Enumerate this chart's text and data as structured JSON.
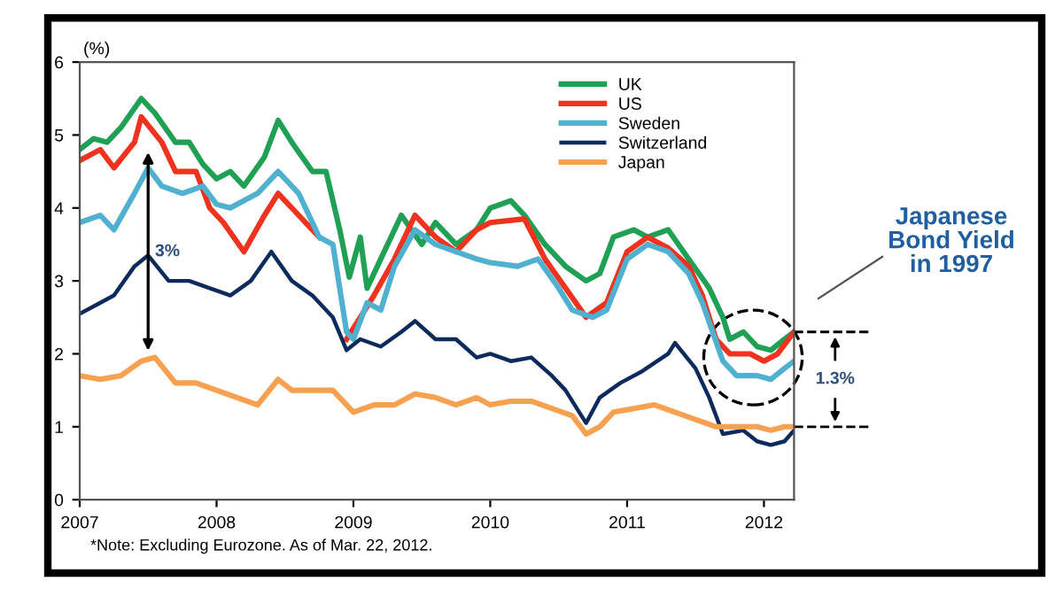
{
  "chart_data": {
    "type": "line",
    "ylabel": "(%)",
    "xlim": [
      2007,
      2012.22
    ],
    "xticks": [
      2007,
      2008,
      2009,
      2010,
      2011,
      2012
    ],
    "ylim": [
      0,
      6
    ],
    "yticks": [
      0,
      1,
      2,
      3,
      4,
      5,
      6
    ],
    "grid": false,
    "legend": "top right",
    "line_style": "solid",
    "marker": "none",
    "series": [
      {
        "name": "UK",
        "color": "#1fa055",
        "x": [
          2007.0,
          2007.1,
          2007.2,
          2007.3,
          2007.45,
          2007.55,
          2007.7,
          2007.8,
          2007.9,
          2008.0,
          2008.1,
          2008.2,
          2008.35,
          2008.45,
          2008.55,
          2008.7,
          2008.8,
          2008.9,
          2008.97,
          2009.05,
          2009.1,
          2009.2,
          2009.35,
          2009.5,
          2009.6,
          2009.75,
          2009.9,
          2010.0,
          2010.15,
          2010.25,
          2010.4,
          2010.55,
          2010.7,
          2010.8,
          2010.9,
          2011.05,
          2011.15,
          2011.3,
          2011.45,
          2011.6,
          2011.7,
          2011.75,
          2011.85,
          2011.95,
          2012.05,
          2012.15,
          2012.22
        ],
        "values": [
          4.8,
          4.95,
          4.9,
          5.1,
          5.5,
          5.3,
          4.9,
          4.9,
          4.6,
          4.4,
          4.5,
          4.3,
          4.7,
          5.2,
          4.9,
          4.5,
          4.5,
          3.7,
          3.05,
          3.6,
          2.9,
          3.3,
          3.9,
          3.5,
          3.8,
          3.5,
          3.7,
          4.0,
          4.1,
          3.9,
          3.5,
          3.2,
          3.0,
          3.1,
          3.6,
          3.7,
          3.6,
          3.7,
          3.3,
          2.9,
          2.5,
          2.2,
          2.3,
          2.1,
          2.05,
          2.2,
          2.3
        ]
      },
      {
        "name": "US",
        "color": "#f0321e",
        "x": [
          2007.0,
          2007.15,
          2007.25,
          2007.4,
          2007.45,
          2007.6,
          2007.7,
          2007.85,
          2007.95,
          2008.05,
          2008.2,
          2008.35,
          2008.45,
          2008.6,
          2008.75,
          2008.85,
          2008.95,
          2009.05,
          2009.15,
          2009.3,
          2009.45,
          2009.6,
          2009.75,
          2009.9,
          2010.0,
          2010.25,
          2010.4,
          2010.55,
          2010.7,
          2010.85,
          2011.0,
          2011.15,
          2011.3,
          2011.45,
          2011.55,
          2011.65,
          2011.75,
          2011.9,
          2012.0,
          2012.1,
          2012.22
        ],
        "values": [
          4.65,
          4.8,
          4.55,
          4.9,
          5.25,
          4.9,
          4.5,
          4.5,
          4.0,
          3.8,
          3.4,
          3.9,
          4.2,
          3.9,
          3.6,
          null,
          2.2,
          2.5,
          2.8,
          3.3,
          3.9,
          3.6,
          3.4,
          3.7,
          3.8,
          3.85,
          3.3,
          2.9,
          2.5,
          2.7,
          3.4,
          3.6,
          3.45,
          3.2,
          2.8,
          2.2,
          2.0,
          2.0,
          1.9,
          2.0,
          2.3
        ]
      },
      {
        "name": "Sweden",
        "color": "#4fb0d0",
        "x": [
          2007.0,
          2007.15,
          2007.25,
          2007.4,
          2007.5,
          2007.6,
          2007.75,
          2007.9,
          2008.0,
          2008.1,
          2008.3,
          2008.45,
          2008.6,
          2008.75,
          2008.85,
          2008.95,
          2009.0,
          2009.1,
          2009.2,
          2009.3,
          2009.45,
          2009.6,
          2009.75,
          2009.9,
          2010.0,
          2010.2,
          2010.35,
          2010.5,
          2010.6,
          2010.75,
          2010.85,
          2011.0,
          2011.15,
          2011.3,
          2011.45,
          2011.55,
          2011.7,
          2011.8,
          2011.95,
          2012.05,
          2012.15,
          2012.22
        ],
        "values": [
          3.8,
          3.9,
          3.7,
          4.2,
          4.55,
          4.3,
          4.2,
          4.3,
          4.05,
          4.0,
          4.2,
          4.5,
          4.2,
          3.6,
          3.5,
          2.3,
          2.2,
          2.7,
          2.6,
          3.2,
          3.7,
          3.5,
          3.4,
          3.3,
          3.25,
          3.2,
          3.3,
          2.9,
          2.6,
          2.5,
          2.6,
          3.3,
          3.5,
          3.4,
          3.1,
          2.7,
          1.9,
          1.7,
          1.7,
          1.65,
          1.8,
          1.9
        ]
      },
      {
        "name": "Switzerland",
        "color": "#0d2a5c",
        "x": [
          2007.0,
          2007.1,
          2007.25,
          2007.4,
          2007.5,
          2007.65,
          2007.8,
          2007.95,
          2008.1,
          2008.25,
          2008.4,
          2008.55,
          2008.7,
          2008.85,
          2008.95,
          2009.05,
          2009.2,
          2009.35,
          2009.45,
          2009.6,
          2009.75,
          2009.9,
          2010.0,
          2010.15,
          2010.3,
          2010.45,
          2010.55,
          2010.65,
          2010.7,
          2010.8,
          2010.95,
          2011.1,
          2011.3,
          2011.35,
          2011.5,
          2011.6,
          2011.7,
          2011.85,
          2011.95,
          2012.05,
          2012.15,
          2012.22
        ],
        "values": [
          2.55,
          2.65,
          2.8,
          3.2,
          3.35,
          3.0,
          3.0,
          2.9,
          2.8,
          3.0,
          3.4,
          3.0,
          2.8,
          2.5,
          2.05,
          2.2,
          2.1,
          2.3,
          2.45,
          2.2,
          2.2,
          1.95,
          2.0,
          1.9,
          1.95,
          1.7,
          1.5,
          1.2,
          1.05,
          1.4,
          1.6,
          1.75,
          2.0,
          2.15,
          1.8,
          1.4,
          0.9,
          0.95,
          0.8,
          0.75,
          0.8,
          0.95
        ]
      },
      {
        "name": "Japan",
        "color": "#f7a04f",
        "x": [
          2007.0,
          2007.15,
          2007.3,
          2007.45,
          2007.55,
          2007.7,
          2007.85,
          2008.0,
          2008.15,
          2008.3,
          2008.45,
          2008.55,
          2008.7,
          2008.85,
          2009.0,
          2009.15,
          2009.3,
          2009.45,
          2009.6,
          2009.75,
          2009.9,
          2010.0,
          2010.15,
          2010.3,
          2010.45,
          2010.6,
          2010.7,
          2010.8,
          2010.9,
          2011.05,
          2011.2,
          2011.35,
          2011.5,
          2011.65,
          2011.8,
          2011.95,
          2012.05,
          2012.15,
          2012.22
        ],
        "values": [
          1.7,
          1.65,
          1.7,
          1.9,
          1.95,
          1.6,
          1.6,
          1.5,
          1.4,
          1.3,
          1.65,
          1.5,
          1.5,
          1.5,
          1.2,
          1.3,
          1.3,
          1.45,
          1.4,
          1.3,
          1.4,
          1.3,
          1.35,
          1.35,
          1.25,
          1.15,
          0.9,
          1.0,
          1.2,
          1.25,
          1.3,
          1.2,
          1.1,
          1.0,
          1.0,
          1.0,
          0.95,
          1.0,
          1.0
        ]
      }
    ],
    "annotations": [
      {
        "text": "3%",
        "x": 2007.5,
        "y": 3.4
      },
      "1.3%",
      "Japanese\nBond Yield\nin 1997",
      "*Note: Excluding Eurozone. As of Mar. 22, 2012."
    ]
  }
}
